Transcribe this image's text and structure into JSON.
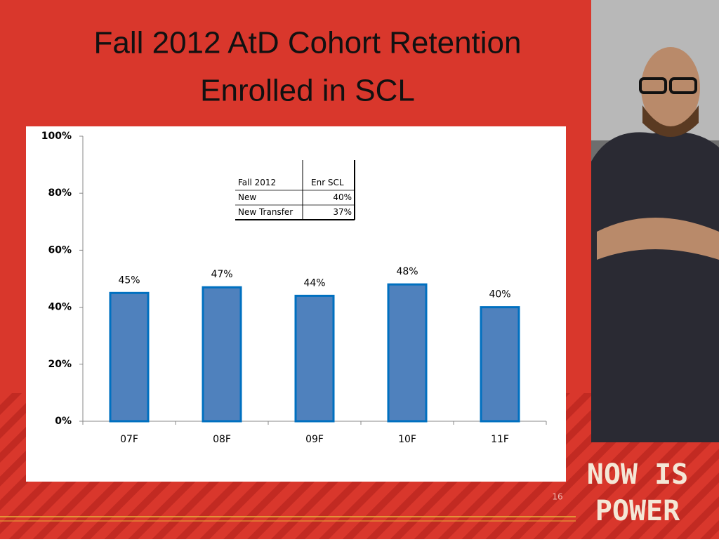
{
  "chart_data": {
    "type": "bar",
    "title": "Fall 2012 AtD Cohort Retention",
    "subtitle": "Enrolled in SCL",
    "categories": [
      "07F",
      "08F",
      "09F",
      "10F",
      "11F"
    ],
    "values": [
      45,
      47,
      44,
      48,
      40
    ],
    "value_labels": [
      "45%",
      "47%",
      "44%",
      "48%",
      "40%"
    ],
    "color": "#4f81bd",
    "edge_color": "#0070c0",
    "ylim": [
      0,
      100
    ],
    "yticks": [
      {
        "value": 0,
        "label": "0%"
      },
      {
        "value": 20,
        "label": "20%"
      },
      {
        "value": 40,
        "label": "40%"
      },
      {
        "value": 60,
        "label": "60%"
      },
      {
        "value": 80,
        "label": "80%"
      },
      {
        "value": 100,
        "label": "100%"
      }
    ],
    "grid": false
  },
  "inset_table": {
    "header": [
      "Fall 2012",
      "Enr SCL"
    ],
    "rows": [
      [
        "New",
        "40%"
      ],
      [
        "New Transfer",
        "37%"
      ]
    ]
  },
  "slide_number": 16,
  "logo": [
    "NOW IS",
    "POWER"
  ]
}
